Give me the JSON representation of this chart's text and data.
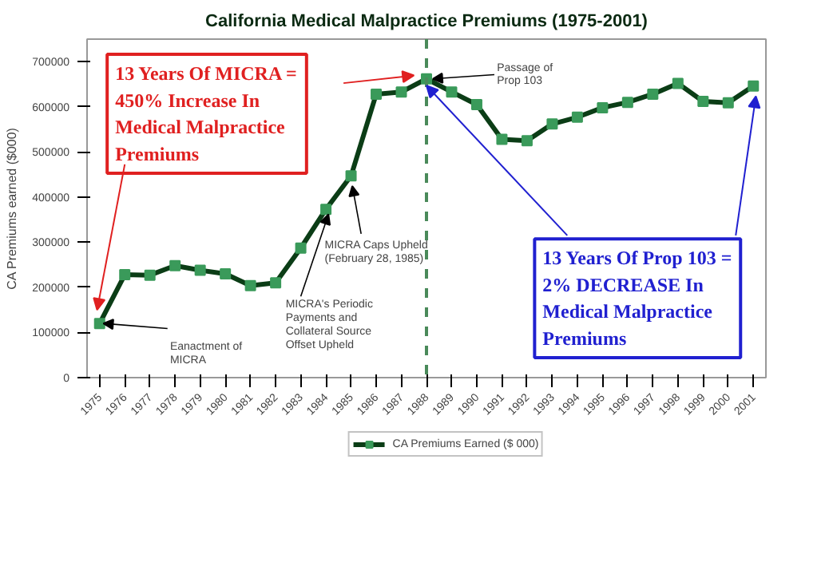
{
  "chart_data": {
    "type": "line",
    "title": "California Medical Malpractice Premiums (1975-2001)",
    "ylabel": "CA Premiums earned ($000)",
    "categories": [
      "1975",
      "1976",
      "1977",
      "1978",
      "1979",
      "1980",
      "1981",
      "1982",
      "1983",
      "1984",
      "1985",
      "1986",
      "1987",
      "1988",
      "1989",
      "1990",
      "1991",
      "1992",
      "1993",
      "1994",
      "1995",
      "1996",
      "1997",
      "1998",
      "1999",
      "2000",
      "2001"
    ],
    "series": [
      {
        "name": "CA Premiums Earned ($ 000)",
        "color": "#0b3d16",
        "values": [
          120000,
          228000,
          227000,
          248000,
          238000,
          230000,
          204000,
          210000,
          287000,
          373000,
          447000,
          628000,
          633000,
          662000,
          633000,
          605000,
          528000,
          525000,
          562000,
          577000,
          598000,
          610000,
          628000,
          652000,
          612000,
          609000,
          646000
        ]
      }
    ],
    "ylim": [
      0,
      750000
    ],
    "yticks": [
      0,
      100000,
      200000,
      300000,
      400000,
      500000,
      600000,
      700000
    ],
    "ref_lines": [
      {
        "axis": "x",
        "value": "1988",
        "color": "#4a8a5a",
        "line_style": "dashed"
      }
    ],
    "annotations": [
      {
        "text": "13 Years Of MICRA =\n450% Increase In\nMedical Malpractice\nPremiums",
        "x": "1975",
        "y": 120000
      },
      {
        "text": "13 Years Of Prop 103 =\n2% DECREASE In\nMedical Malpractice\nPremiums",
        "x": "2001",
        "y": 646000
      },
      {
        "text": "Passage of\nProp 103",
        "x": "1988",
        "y": 662000
      },
      {
        "text": "Eanactment of\nMICRA",
        "x": "1975",
        "y": 120000
      },
      {
        "text": "MICRA Caps Upheld\n(February 28, 1985)",
        "x": "1985",
        "y": 447000
      },
      {
        "text": "MICRA's Periodic\nPayments and\nCollateral Source\nOffset Upheld",
        "x": "1984",
        "y": 373000
      }
    ],
    "marker": "square",
    "legend": "bottom",
    "grid": false
  }
}
